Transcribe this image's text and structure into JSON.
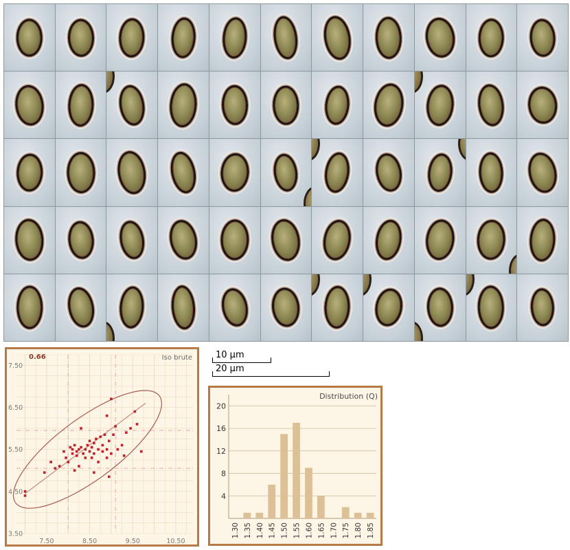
{
  "scale_bars": [
    {
      "label": "10 µm"
    },
    {
      "label": "20 µm"
    }
  ],
  "montage": {
    "rows": 5,
    "cols": 11
  },
  "colors": {
    "panel_border": "#b77a45",
    "panel_bg": "#fdf6e6",
    "scatter_point": "#c0202a",
    "ellipse": "#a85a50",
    "bar": "#dcc198"
  },
  "chart_data": [
    {
      "type": "scatter",
      "title": "Iso brute",
      "corner_value": "0.66",
      "xlabel": "",
      "ylabel": "",
      "xlim": [
        6.8,
        10.9
      ],
      "ylim": [
        3.5,
        7.75
      ],
      "x_ticks": [
        "7.50",
        "8.50",
        "9.50",
        "10.50"
      ],
      "y_ticks": [
        "3.50",
        "4.50",
        "5.50",
        "6.50",
        "7.50"
      ],
      "grid": true,
      "reference_lines": {
        "x": [
          8.0,
          9.1
        ],
        "y": [
          5.05,
          5.95
        ]
      },
      "trend_line": {
        "x": [
          7.0,
          9.8
        ],
        "y": [
          4.45,
          6.6
        ]
      },
      "ellipse": {
        "center": [
          8.45,
          5.5
        ],
        "semi_axis_major": 2.1,
        "semi_axis_minor": 0.72,
        "angle_deg": 37.5
      },
      "points": [
        [
          7.0,
          4.5
        ],
        [
          7.0,
          4.4
        ],
        [
          7.45,
          4.95
        ],
        [
          7.6,
          5.2
        ],
        [
          7.7,
          5.05
        ],
        [
          7.8,
          5.1
        ],
        [
          7.9,
          5.45
        ],
        [
          7.95,
          5.3
        ],
        [
          8.0,
          5.2
        ],
        [
          8.05,
          5.55
        ],
        [
          8.1,
          5.5
        ],
        [
          8.1,
          5.4
        ],
        [
          8.15,
          5.6
        ],
        [
          8.2,
          5.45
        ],
        [
          8.2,
          5.35
        ],
        [
          8.25,
          5.5
        ],
        [
          8.25,
          5.1
        ],
        [
          8.3,
          5.55
        ],
        [
          8.35,
          5.4
        ],
        [
          8.4,
          5.5
        ],
        [
          8.4,
          5.3
        ],
        [
          8.45,
          5.6
        ],
        [
          8.5,
          5.45
        ],
        [
          8.5,
          5.7
        ],
        [
          8.55,
          5.55
        ],
        [
          8.55,
          5.3
        ],
        [
          8.6,
          5.65
        ],
        [
          8.6,
          5.4
        ],
        [
          8.65,
          5.75
        ],
        [
          8.7,
          5.5
        ],
        [
          8.7,
          5.2
        ],
        [
          8.75,
          5.8
        ],
        [
          8.8,
          5.45
        ],
        [
          8.8,
          5.6
        ],
        [
          8.85,
          5.85
        ],
        [
          8.9,
          5.5
        ],
        [
          8.9,
          5.3
        ],
        [
          8.95,
          5.7
        ],
        [
          9.0,
          5.4
        ],
        [
          9.05,
          5.85
        ],
        [
          9.1,
          6.05
        ],
        [
          9.15,
          5.5
        ],
        [
          9.25,
          5.6
        ],
        [
          9.3,
          5.35
        ],
        [
          9.35,
          5.9
        ],
        [
          9.45,
          6.0
        ],
        [
          9.6,
          6.1
        ],
        [
          9.7,
          5.45
        ],
        [
          9.55,
          6.4
        ],
        [
          8.6,
          4.95
        ],
        [
          8.3,
          6.0
        ],
        [
          8.9,
          6.3
        ],
        [
          9.0,
          6.7
        ],
        [
          8.95,
          4.85
        ],
        [
          8.15,
          5.0
        ]
      ]
    },
    {
      "type": "bar",
      "title": "Distribution (Q)",
      "xlabel": "",
      "ylabel": "",
      "categories": [
        "1.30",
        "1.35",
        "1.40",
        "1.45",
        "1.50",
        "1.55",
        "1.60",
        "1.65",
        "1.70",
        "1.75",
        "1.80",
        "1.85"
      ],
      "values": [
        0,
        1,
        1,
        6,
        15,
        17,
        9,
        4,
        0,
        2,
        1,
        1
      ],
      "y_ticks": [
        "4",
        "8",
        "12",
        "16",
        "20"
      ],
      "ylim": [
        0,
        22
      ],
      "grid": true
    }
  ]
}
